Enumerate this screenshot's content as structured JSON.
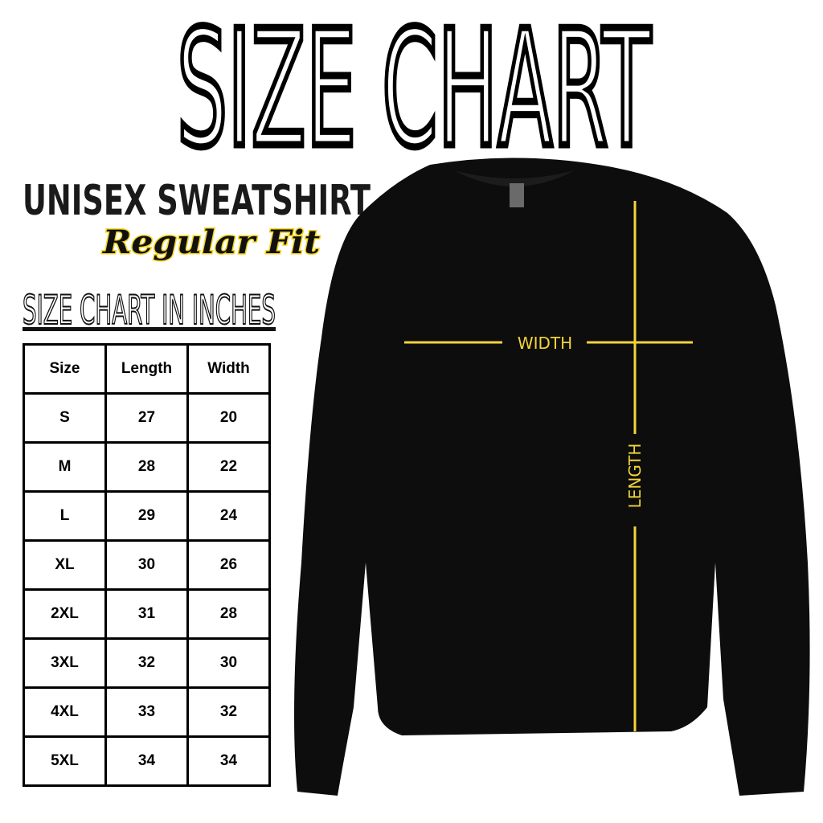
{
  "title": "SIZE CHART",
  "product": "UNISEX SWEATSHIRT",
  "fit": "Regular Fit",
  "section_title": "SIZE CHART IN INCHES",
  "table": {
    "headers": [
      "Size",
      "Length",
      "Width"
    ],
    "rows": [
      [
        "S",
        "27",
        "20"
      ],
      [
        "M",
        "28",
        "22"
      ],
      [
        "L",
        "29",
        "24"
      ],
      [
        "XL",
        "30",
        "26"
      ],
      [
        "2XL",
        "31",
        "28"
      ],
      [
        "3XL",
        "32",
        "30"
      ],
      [
        "4XL",
        "33",
        "32"
      ],
      [
        "5XL",
        "34",
        "34"
      ]
    ]
  },
  "diagram": {
    "width_label": "WIDTH",
    "length_label": "LENGTH",
    "shirt_color": "#0d0d0d",
    "measure_color": "#f2d43a",
    "accent_color": "#f5d51e"
  }
}
